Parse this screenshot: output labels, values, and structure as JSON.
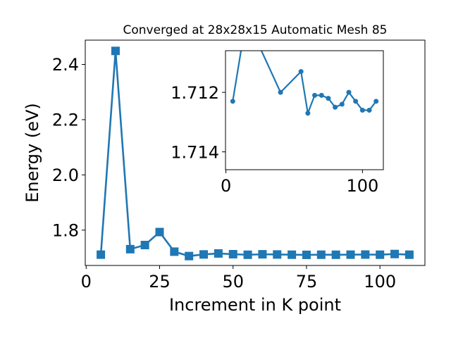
{
  "chart_data": [
    {
      "type": "line",
      "title": "Converged at 28x28x15 Automatic Mesh 85",
      "xlabel": "Increment in K point",
      "ylabel": "Energy (eV)",
      "xlim": [
        -0.3,
        115.3
      ],
      "ylim": [
        1.672,
        2.488
      ],
      "xticks": [
        0,
        25,
        50,
        75,
        100
      ],
      "yticks": [
        1.8,
        2.0,
        2.2,
        2.4
      ],
      "ytick_labels": [
        "1.8",
        "2.0",
        "2.2",
        "2.4"
      ],
      "marker": "square",
      "color": "#1f77b4",
      "grid": false,
      "series": [
        {
          "x": [
            5,
            10,
            15,
            20,
            25,
            30,
            35,
            40,
            45,
            50,
            55,
            60,
            65,
            70,
            75,
            80,
            85,
            90,
            95,
            100,
            105,
            110
          ],
          "values": [
            1.7112,
            2.449,
            1.731,
            1.746,
            1.793,
            1.722,
            1.706,
            1.712,
            1.7155,
            1.7128,
            1.7108,
            1.7125,
            1.7118,
            1.711,
            1.7105,
            1.711,
            1.7108,
            1.7112,
            1.7115,
            1.711,
            1.7135,
            1.711
          ]
        }
      ]
    },
    {
      "type": "line",
      "title": "",
      "xlabel": "",
      "ylabel": "",
      "xlim": [
        -0.3,
        115.3
      ],
      "ylim": [
        1.7146,
        1.7106
      ],
      "inverted_y": true,
      "xticks": [
        0,
        100
      ],
      "yticks": [
        1.712,
        1.714
      ],
      "ytick_labels": [
        "1.712",
        "1.714"
      ],
      "marker": "circle",
      "color": "#1f77b4",
      "grid": false,
      "series": [
        {
          "x": [
            5,
            15,
            40,
            55,
            60,
            65,
            70,
            75,
            80,
            85,
            90,
            95,
            100,
            105,
            110
          ],
          "values": [
            1.7123,
            1.7095,
            1.712,
            1.7113,
            1.7127,
            1.7121,
            1.7121,
            1.7122,
            1.7125,
            1.7124,
            1.712,
            1.7123,
            1.7126,
            1.7126,
            1.7123
          ]
        }
      ]
    }
  ]
}
